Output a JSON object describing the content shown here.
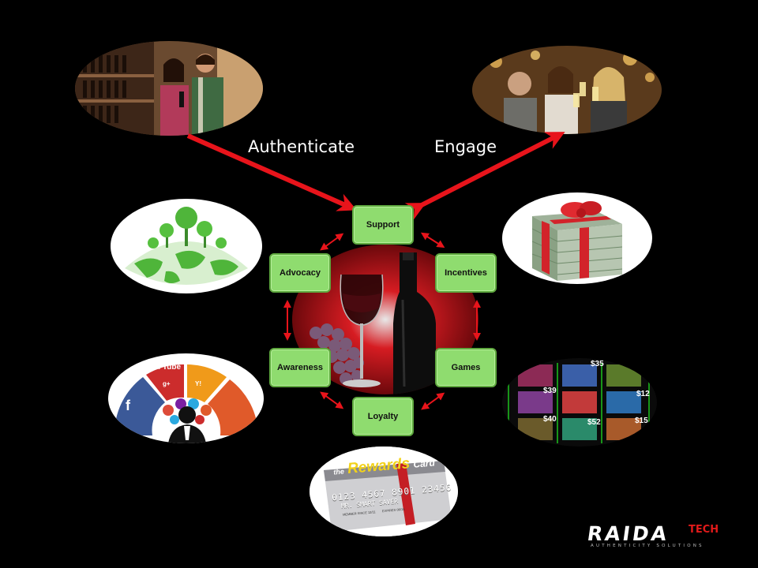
{
  "flow": {
    "authenticate": "Authenticate",
    "engage": "Engage"
  },
  "nodes": {
    "support": "Support",
    "incentives": "Incentives",
    "games": "Games",
    "loyalty": "Loyalty",
    "awareness": "Awareness",
    "advocacy": "Advocacy"
  },
  "rewards_card": {
    "title": "Rewards",
    "prefix": "the",
    "suffix": "Card",
    "number": "0123 4567 8901 23456",
    "name": "MR. SMART SAVER",
    "member_since": "MEMBER SINCE 12/11",
    "expires": "EXPIRES 08/15"
  },
  "social_badges": {
    "youtube": "You Tube",
    "facebook": "f",
    "googleplus": "g+",
    "yahoo": "Y!"
  },
  "game_prices": [
    "$39",
    "$35",
    "$12",
    "$40",
    "$52",
    "$15"
  ],
  "logo": {
    "main": "RAIDA",
    "tech": "TECH",
    "tagline": "AUTHENTICITY SOLUTIONS"
  },
  "colors": {
    "background": "#000000",
    "arrow": "#e8141b",
    "node_fill": "#8fdc6f",
    "node_border": "#5ea83e",
    "brand_red": "#e11a1a"
  }
}
